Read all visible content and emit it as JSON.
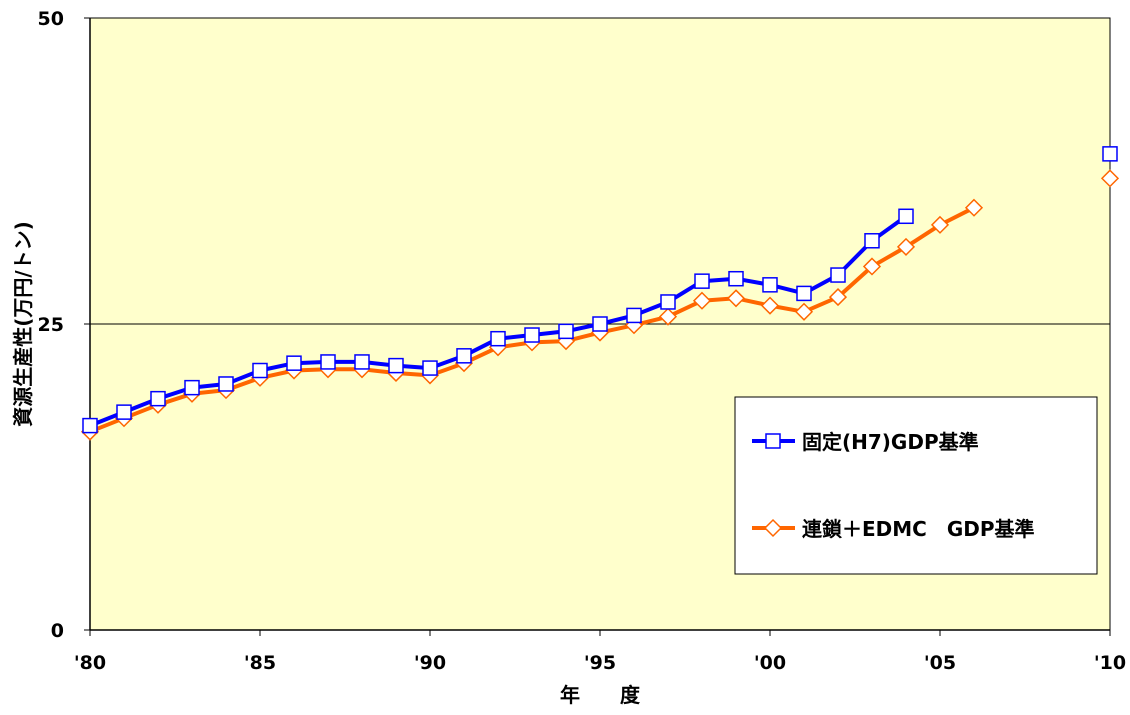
{
  "chart_data": {
    "type": "line",
    "ylabel": "資源生産性(万円/トン)",
    "xlabel": "年　　度",
    "xlim": [
      1980,
      2010
    ],
    "ylim": [
      0,
      50
    ],
    "x_ticks": [
      {
        "value": 1980,
        "label": "'80"
      },
      {
        "value": 1985,
        "label": "'85"
      },
      {
        "value": 1990,
        "label": "'90"
      },
      {
        "value": 1995,
        "label": "'95"
      },
      {
        "value": 2000,
        "label": "'00"
      },
      {
        "value": 2005,
        "label": "'05"
      },
      {
        "value": 2010,
        "label": "'10"
      }
    ],
    "y_ticks": [
      {
        "value": 0,
        "label": "0"
      },
      {
        "value": 25,
        "label": "25"
      },
      {
        "value": 50,
        "label": "50"
      }
    ],
    "gridlines_y": [
      25
    ],
    "legend_position": "right",
    "plot_background": "#FFFFCC",
    "series": [
      {
        "name": "固定(H7)GDP基準",
        "color": "#0000FF",
        "marker": "square",
        "points": [
          [
            1980,
            16.7
          ],
          [
            1981,
            17.8
          ],
          [
            1982,
            18.9
          ],
          [
            1983,
            19.8
          ],
          [
            1984,
            20.1
          ],
          [
            1985,
            21.2
          ],
          [
            1986,
            21.8
          ],
          [
            1987,
            21.9
          ],
          [
            1988,
            21.9
          ],
          [
            1989,
            21.6
          ],
          [
            1990,
            21.4
          ],
          [
            1991,
            22.4
          ],
          [
            1992,
            23.8
          ],
          [
            1993,
            24.1
          ],
          [
            1994,
            24.4
          ],
          [
            1995,
            25.0
          ],
          [
            1996,
            25.7
          ],
          [
            1997,
            26.8
          ],
          [
            1998,
            28.5
          ],
          [
            1999,
            28.7
          ],
          [
            2000,
            28.2
          ],
          [
            2001,
            27.5
          ],
          [
            2002,
            29.0
          ],
          [
            2003,
            31.8
          ],
          [
            2004,
            33.8
          ]
        ],
        "isolated_points": [
          [
            2010,
            38.9
          ]
        ]
      },
      {
        "name": "連鎖＋EDMC　GDP基準",
        "color": "#FF6600",
        "marker": "diamond",
        "points": [
          [
            1980,
            16.2
          ],
          [
            1981,
            17.3
          ],
          [
            1982,
            18.4
          ],
          [
            1983,
            19.3
          ],
          [
            1984,
            19.6
          ],
          [
            1985,
            20.6
          ],
          [
            1986,
            21.2
          ],
          [
            1987,
            21.3
          ],
          [
            1988,
            21.3
          ],
          [
            1989,
            21.0
          ],
          [
            1990,
            20.8
          ],
          [
            1991,
            21.8
          ],
          [
            1992,
            23.1
          ],
          [
            1993,
            23.5
          ],
          [
            1994,
            23.6
          ],
          [
            1995,
            24.3
          ],
          [
            1996,
            24.9
          ],
          [
            1997,
            25.6
          ],
          [
            1998,
            26.9
          ],
          [
            1999,
            27.1
          ],
          [
            2000,
            26.5
          ],
          [
            2001,
            26.0
          ],
          [
            2002,
            27.2
          ],
          [
            2003,
            29.7
          ],
          [
            2004,
            31.3
          ],
          [
            2005,
            33.1
          ],
          [
            2006,
            34.5
          ]
        ],
        "isolated_points": [
          [
            2010,
            36.9
          ]
        ]
      }
    ]
  }
}
